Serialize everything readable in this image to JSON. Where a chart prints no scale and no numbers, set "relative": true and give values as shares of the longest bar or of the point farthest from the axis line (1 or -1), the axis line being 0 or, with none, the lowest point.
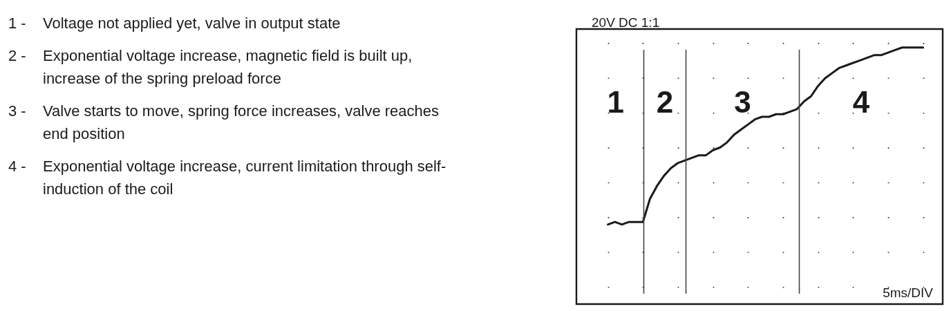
{
  "chart_data": {
    "type": "line",
    "relative": true,
    "title": "20V DC 1:1",
    "xlabel": "5ms/DIV",
    "categories": [
      null,
      null,
      null,
      null,
      null,
      null,
      null,
      null,
      null,
      null,
      null,
      null,
      null,
      null,
      null,
      null,
      null,
      null,
      null,
      null,
      null,
      null,
      null,
      null,
      null,
      null,
      null,
      null,
      null,
      null,
      null,
      null,
      null,
      null,
      null,
      null,
      null,
      null,
      null,
      null,
      null,
      null,
      null,
      null,
      null,
      null
    ],
    "series": [
      {
        "color": "#1a1a1a",
        "values": [
          0.31,
          0.32,
          0.31,
          0.32,
          0.32,
          0.32,
          0.41,
          0.46,
          0.5,
          0.53,
          0.55,
          0.56,
          0.57,
          0.58,
          0.58,
          0.6,
          0.61,
          0.63,
          0.66,
          0.68,
          0.7,
          0.72,
          0.73,
          0.73,
          0.74,
          0.74,
          0.75,
          0.76,
          0.79,
          0.81,
          0.85,
          0.88,
          0.9,
          0.92,
          0.93,
          0.94,
          0.95,
          0.96,
          0.97,
          0.97,
          0.98,
          0.99,
          1.0,
          1.0,
          1.0,
          1.0
        ]
      }
    ],
    "grid": true,
    "marker": "none",
    "line_style": "solid",
    "annotations": [
      "1 - Voltage not applied yet, valve in output state",
      "2 - Exponential voltage increase, magnetic field is built up,\nincrease of the spring preload force",
      "3 - Valve starts to move, spring force increases, valve reaches\nend position",
      "4 - Exponential voltage increase, current limitation through self-\ninduction of the coil",
      "1",
      "2",
      "3",
      "4"
    ]
  }
}
